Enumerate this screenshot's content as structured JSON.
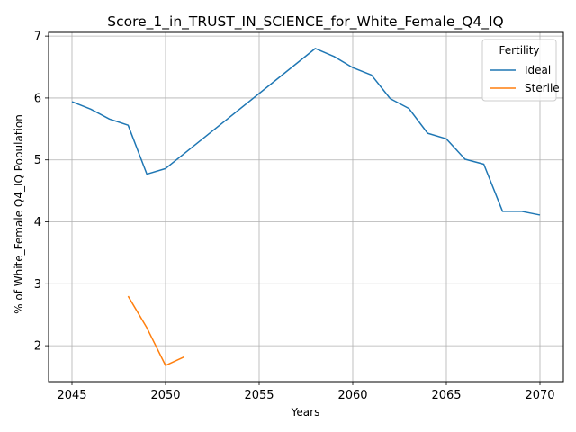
{
  "chart_data": {
    "type": "line",
    "title": "Score_1_in_TRUST_IN_SCIENCE_for_White_Female_Q4_IQ",
    "xlabel": "Years",
    "ylabel": "% of White_Female Q4_IQ Population",
    "xlim": [
      2043.75,
      2071.25
    ],
    "ylim": [
      1.42,
      7.06
    ],
    "xticks": [
      2045,
      2050,
      2055,
      2060,
      2065,
      2070
    ],
    "yticks": [
      2,
      3,
      4,
      5,
      6,
      7
    ],
    "grid": true,
    "legend": {
      "title": "Fertility",
      "placement": "top-right"
    },
    "series": [
      {
        "name": "Ideal",
        "color": "#1f77b4",
        "x": [
          2045,
          2046,
          2047,
          2048,
          2049,
          2050,
          2058,
          2059,
          2060,
          2061,
          2062,
          2063,
          2064,
          2065,
          2066,
          2067,
          2068,
          2069,
          2070
        ],
        "values": [
          5.94,
          5.82,
          5.66,
          5.56,
          4.77,
          4.86,
          6.8,
          6.67,
          6.49,
          6.37,
          5.99,
          5.83,
          5.43,
          5.34,
          5.01,
          4.93,
          4.17,
          4.17,
          4.11
        ]
      },
      {
        "name": "Sterile",
        "color": "#ff7f0e",
        "x": [
          2048,
          2049,
          2050,
          2051
        ],
        "values": [
          2.8,
          2.29,
          1.68,
          1.82
        ]
      }
    ]
  }
}
